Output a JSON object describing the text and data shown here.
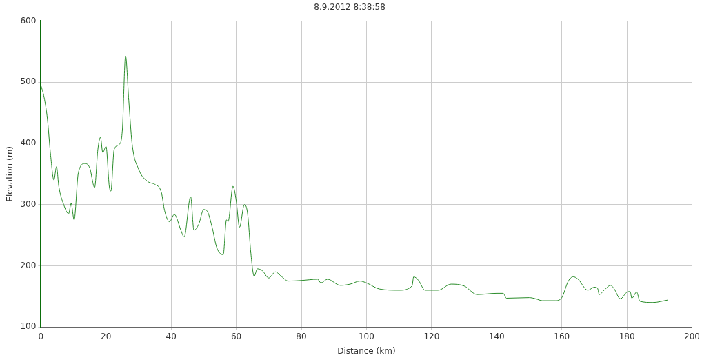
{
  "chart_data": {
    "type": "line",
    "title": "8.9.2012 8:38:58",
    "xlabel": "Distance (km)",
    "ylabel": "Elevation (m)",
    "xlim": [
      0,
      200
    ],
    "ylim": [
      100,
      600
    ],
    "xticks": [
      0,
      20,
      40,
      60,
      80,
      100,
      120,
      140,
      160,
      180,
      200
    ],
    "yticks": [
      100,
      200,
      300,
      400,
      500,
      600
    ],
    "grid": true,
    "legend": false,
    "marker": "none",
    "line_style": "solid",
    "series": [
      {
        "color": "#2a8c2a",
        "x": [
          0,
          1,
          2,
          3,
          4,
          4.8,
          5.5,
          7,
          8.5,
          9.3,
          10.2,
          11.5,
          13.5,
          15,
          16.5,
          17.5,
          18.3,
          19,
          20,
          21,
          21.5,
          22.5,
          24,
          25,
          26,
          27,
          28,
          30,
          33,
          35,
          37,
          38,
          39.5,
          41,
          43,
          44,
          46,
          47,
          48.5,
          50,
          51,
          52.5,
          54,
          56,
          57,
          57.5,
          59,
          60,
          61,
          62.5,
          63.5,
          64.5,
          65.5,
          66.5,
          68,
          70,
          72,
          74,
          76,
          80,
          85,
          86,
          88,
          92,
          95,
          98,
          100,
          104,
          110,
          114,
          114.5,
          116,
          118,
          122,
          126,
          130,
          134,
          140,
          142,
          143,
          150,
          152,
          154,
          158,
          160,
          162,
          163.5,
          165,
          168,
          170,
          171,
          171.5,
          173,
          175,
          176,
          178,
          180,
          181,
          181.5,
          183,
          184,
          188,
          192.5
        ],
        "values": [
          495,
          475,
          440,
          380,
          340,
          362,
          330,
          300,
          285,
          302,
          275,
          352,
          367,
          360,
          328,
          390,
          410,
          385,
          395,
          330,
          322,
          390,
          398,
          420,
          543,
          470,
          400,
          358,
          337,
          333,
          320,
          290,
          272,
          284,
          258,
          247,
          313,
          258,
          268,
          292,
          290,
          265,
          230,
          218,
          275,
          272,
          330,
          306,
          263,
          300,
          285,
          220,
          183,
          195,
          192,
          180,
          190,
          182,
          175,
          176,
          178,
          172,
          178,
          168,
          170,
          175,
          172,
          162,
          160,
          167,
          182,
          176,
          160,
          160,
          170,
          167,
          153,
          155,
          155,
          147,
          148,
          146,
          143,
          143,
          148,
          175,
          182,
          178,
          160,
          165,
          163,
          153,
          160,
          168,
          163,
          146,
          157,
          158,
          147,
          157,
          142,
          140,
          144
        ]
      }
    ]
  }
}
